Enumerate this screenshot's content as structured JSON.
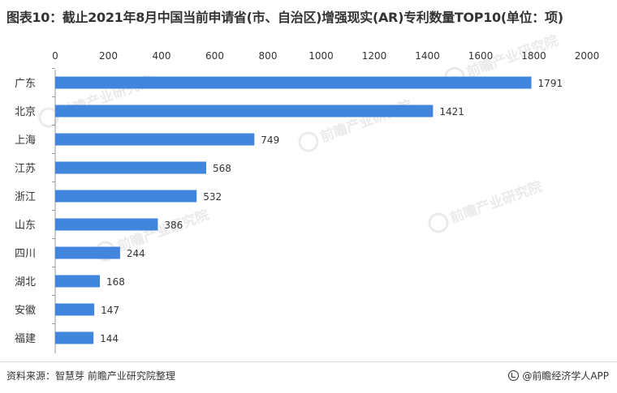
{
  "title": "图表10：截止2021年8月中国当前申请省(市、自治区)增强现实(AR)专利数量TOP10(单位：项)",
  "footer": {
    "source": "资料来源：智慧芽 前瞻产业研究院整理",
    "app": "@前瞻经济学人APP"
  },
  "watermark": {
    "text": "前瞻产业研究院"
  },
  "colors": {
    "bar": "#4285dc",
    "axis": "#9a9a9a",
    "text": "#333333"
  },
  "chart_data": {
    "type": "bar",
    "orientation": "horizontal",
    "categories": [
      "广东",
      "北京",
      "上海",
      "江苏",
      "浙江",
      "山东",
      "四川",
      "湖北",
      "安徽",
      "福建"
    ],
    "values": [
      1791,
      1421,
      749,
      568,
      532,
      386,
      244,
      168,
      147,
      144
    ],
    "data_labels": [
      "1791",
      "1421",
      "749",
      "568",
      "532",
      "386",
      "244",
      "168",
      "147",
      "144"
    ],
    "x_ticks": [
      0,
      200,
      400,
      600,
      800,
      1000,
      1200,
      1400,
      1600,
      1800,
      2000
    ],
    "xlim": [
      0,
      2000
    ],
    "x_axis_position": "top",
    "grid": false,
    "legend": "none"
  }
}
